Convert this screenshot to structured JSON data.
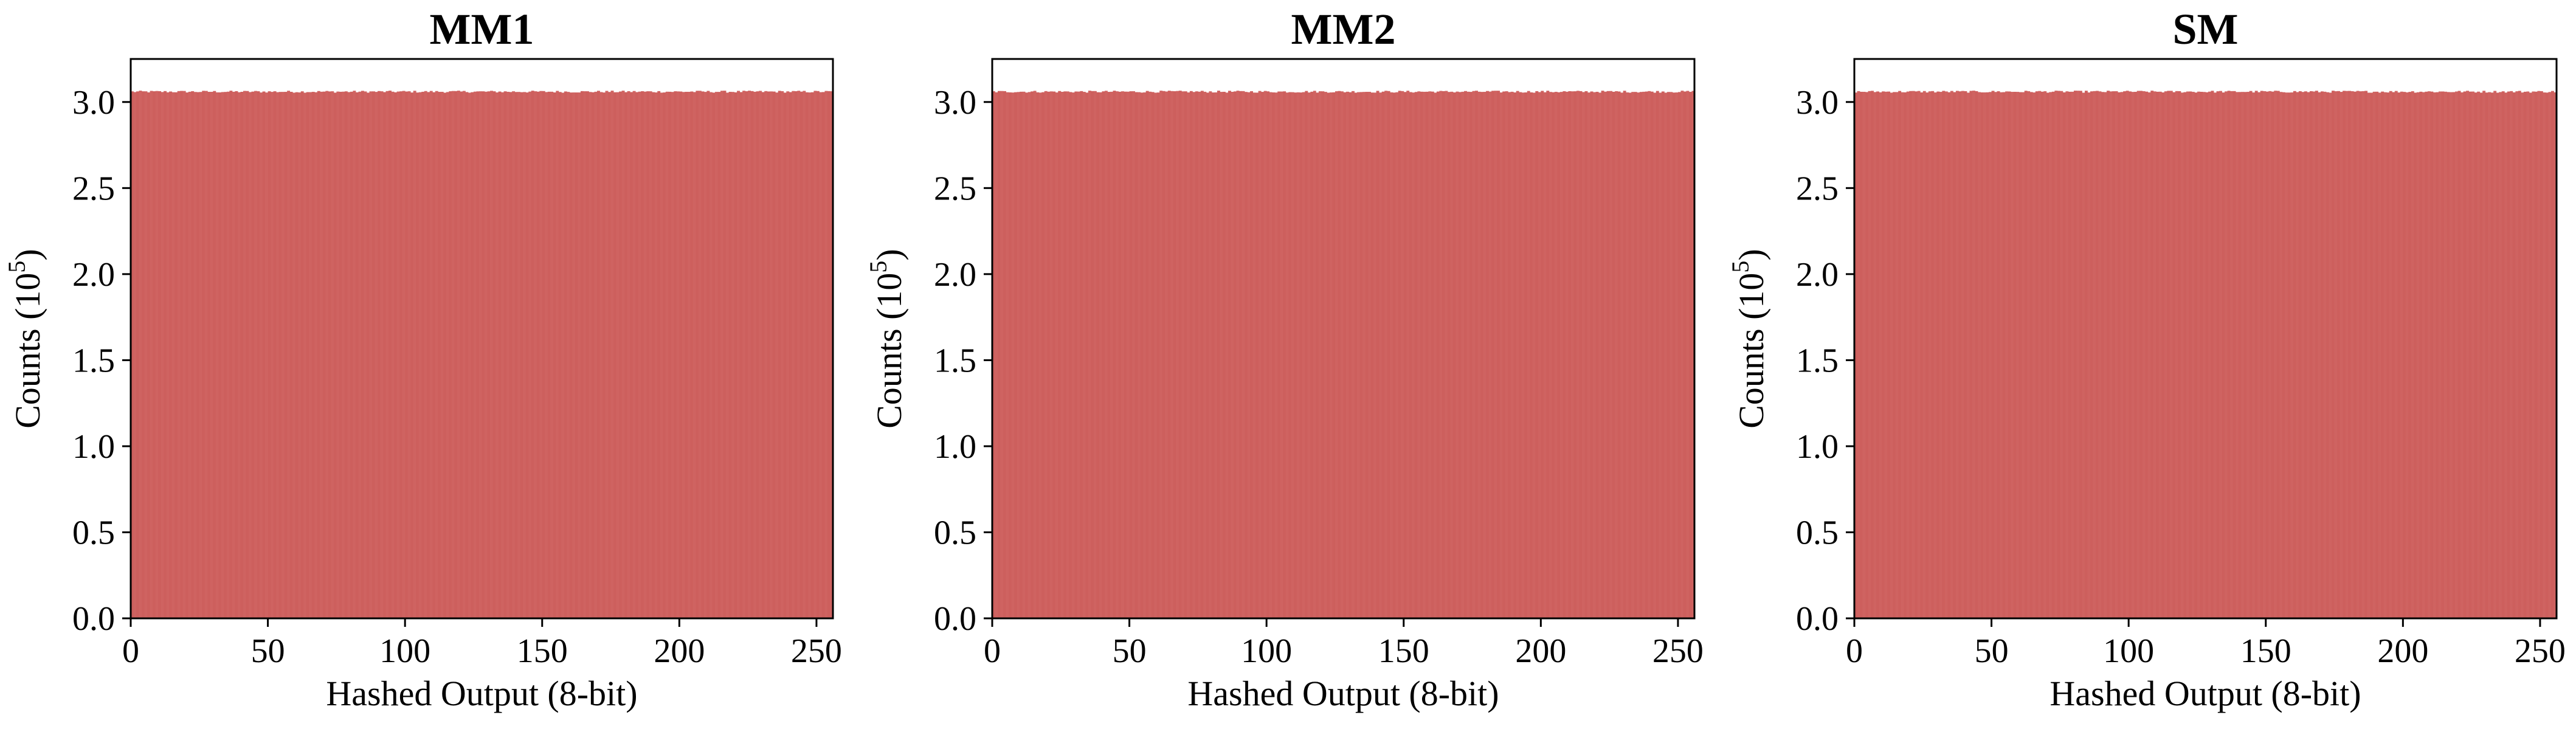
{
  "chart_data": [
    {
      "type": "bar",
      "title": "MM1",
      "xlabel": "Hashed Output (8-bit)",
      "ylabel": "Counts (10",
      "ylabel_sup": "5",
      "ylabel_close": ")",
      "xlim": [
        0,
        256
      ],
      "ylim": [
        0,
        3.25
      ],
      "xticks": [
        "0",
        "50",
        "100",
        "150",
        "200",
        "250"
      ],
      "yticks": [
        "0.0",
        "0.5",
        "1.0",
        "1.5",
        "2.0",
        "2.5",
        "3.0"
      ],
      "bin_count": 256,
      "bin_value_approx": 3.06,
      "grid": false
    },
    {
      "type": "bar",
      "title": "MM2",
      "xlabel": "Hashed Output (8-bit)",
      "ylabel": "Counts (10",
      "ylabel_sup": "5",
      "ylabel_close": ")",
      "xlim": [
        0,
        256
      ],
      "ylim": [
        0,
        3.25
      ],
      "xticks": [
        "0",
        "50",
        "100",
        "150",
        "200",
        "250"
      ],
      "yticks": [
        "0.0",
        "0.5",
        "1.0",
        "1.5",
        "2.0",
        "2.5",
        "3.0"
      ],
      "bin_count": 256,
      "bin_value_approx": 3.06,
      "grid": false
    },
    {
      "type": "bar",
      "title": "SM",
      "xlabel": "Hashed Output (8-bit)",
      "ylabel": "Counts (10",
      "ylabel_sup": "5",
      "ylabel_close": ")",
      "xlim": [
        0,
        256
      ],
      "ylim": [
        0,
        3.25
      ],
      "xticks": [
        "0",
        "50",
        "100",
        "150",
        "200",
        "250"
      ],
      "yticks": [
        "0.0",
        "0.5",
        "1.0",
        "1.5",
        "2.0",
        "2.5",
        "3.0"
      ],
      "bin_count": 256,
      "bin_value_approx": 3.06,
      "grid": false
    }
  ],
  "colors": {
    "bar": "#cd5f5d",
    "axis": "#000000",
    "background": "#ffffff"
  }
}
